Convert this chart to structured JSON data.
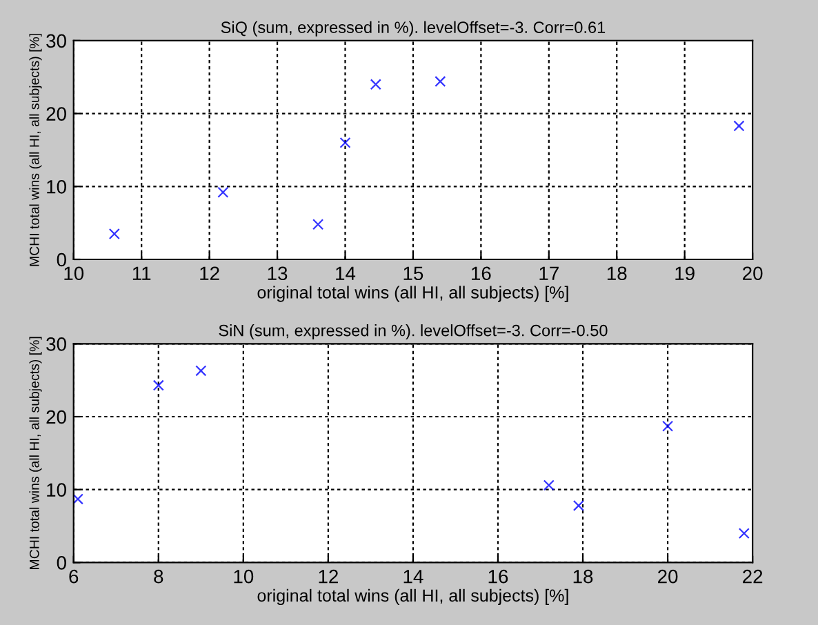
{
  "chart_data": [
    {
      "type": "scatter",
      "title": "SiQ (sum, expressed in %). levelOffset=-3. Corr=0.61",
      "xlabel": "original total wins (all HI, all subjects) [%]",
      "ylabel": "MCHI total wins (all HI, all subjects) [%]",
      "marker": "cross",
      "grid": true,
      "xlim": [
        10,
        20
      ],
      "xticks": [
        10,
        11,
        12,
        13,
        14,
        15,
        16,
        17,
        18,
        19,
        20
      ],
      "ylim": [
        0,
        30
      ],
      "yticks": [
        0,
        10,
        20,
        30
      ],
      "series": [
        {
          "color": "#0000ff",
          "x": [
            10.6,
            12.2,
            13.6,
            14.0,
            14.45,
            15.4,
            19.8
          ],
          "values": [
            3.5,
            9.2,
            4.8,
            16.0,
            24.0,
            24.4,
            18.3
          ]
        }
      ]
    },
    {
      "type": "scatter",
      "title": "SiN (sum, expressed in %). levelOffset=-3. Corr=-0.50",
      "xlabel": "original total wins (all HI, all subjects) [%]",
      "ylabel": "MCHI total wins (all HI, all subjects) [%]",
      "marker": "cross",
      "grid": true,
      "xlim": [
        6,
        22
      ],
      "xticks": [
        6,
        8,
        10,
        12,
        14,
        16,
        18,
        20,
        22
      ],
      "ylim": [
        0,
        30
      ],
      "yticks": [
        0,
        10,
        20,
        30
      ],
      "series": [
        {
          "color": "#0000ff",
          "x": [
            6.1,
            8.0,
            9.0,
            17.2,
            17.9,
            20.0,
            21.8
          ],
          "values": [
            8.7,
            24.3,
            26.3,
            10.6,
            7.8,
            18.7,
            4.0
          ]
        }
      ]
    }
  ]
}
